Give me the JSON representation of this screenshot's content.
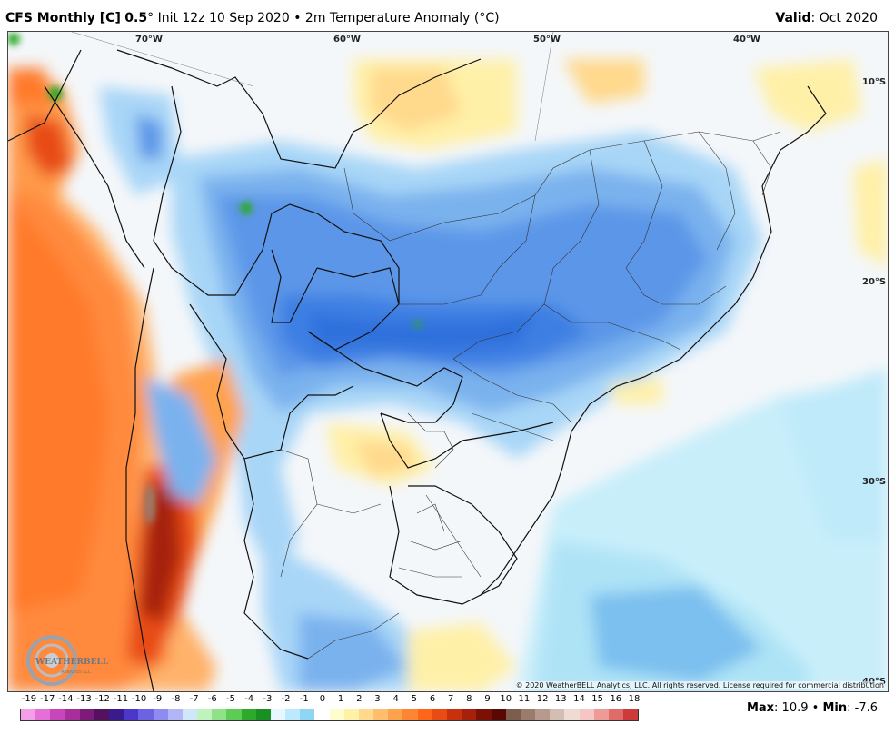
{
  "header": {
    "model": "CFS Monthly [C]",
    "resolution": "0.5",
    "degree_symbol": "°",
    "init": "Init 12z 10 Sep 2020",
    "bullet": "•",
    "field": "2m Temperature Anomaly (°C)",
    "valid_label": "Valid",
    "valid_value": ": Oct 2020"
  },
  "map": {
    "lon_labels": [
      "70°W",
      "60°W",
      "50°W",
      "40°W"
    ],
    "lat_labels": [
      "10°S",
      "20°S",
      "30°S",
      "40°S"
    ],
    "copyright": "© 2020 WeatherBELL Analytics, LLC. All rights reserved. License required for commercial distribution",
    "logo_text": "WEATHERBELL",
    "logo_subtext": "Analytics LLC"
  },
  "legend": {
    "ticks": [
      "-19",
      "-17",
      "-14",
      "-13",
      "-12",
      "-11",
      "-10",
      "-9",
      "-8",
      "-7",
      "-6",
      "-5",
      "-4",
      "-3",
      "-2",
      "-1",
      "0",
      "1",
      "2",
      "3",
      "4",
      "5",
      "6",
      "7",
      "8",
      "9",
      "10",
      "11",
      "12",
      "13",
      "14",
      "15",
      "16",
      "18"
    ],
    "colors": [
      "#f59fe8",
      "#e46fd6",
      "#c845bc",
      "#a82e9c",
      "#7d1b7a",
      "#55105e",
      "#3a1b8f",
      "#4b37c8",
      "#6b63e2",
      "#8e8cf0",
      "#b2b6f7",
      "#cfe6fb",
      "#bff3bd",
      "#8fe28a",
      "#5ccc57",
      "#2ea92b",
      "#1a8f22",
      "#e6f7ff",
      "#bde9ff",
      "#8fd6f5",
      "#ffffff",
      "#fffccf",
      "#fff1a6",
      "#ffd98c",
      "#ffbe6e",
      "#ffa24e",
      "#ff8533",
      "#ff6619",
      "#e84c12",
      "#c9300c",
      "#a6200a",
      "#7a1006",
      "#5a0804",
      "#7c5d4e",
      "#9a7b6c",
      "#b79a8d",
      "#d4bdb3",
      "#eedbd4",
      "#f5c6c3",
      "#ee9a97",
      "#e06b68",
      "#cc3b39"
    ]
  },
  "stats": {
    "max_label": "Max",
    "max_value": ": 10.9",
    "sep": " • ",
    "min_label": "Min",
    "min_value": ": -7.6"
  }
}
